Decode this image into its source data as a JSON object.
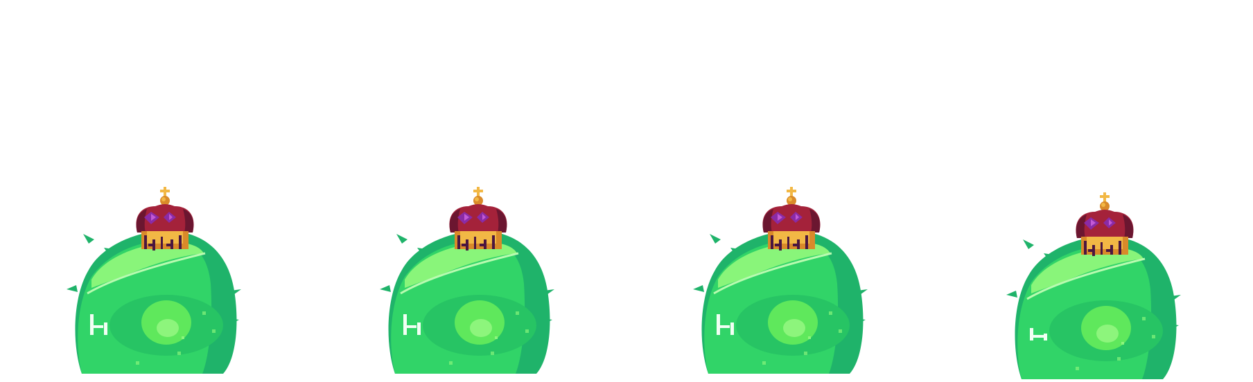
{
  "sprite_sheet": {
    "character": "king-slime",
    "frame_count": 4,
    "palette": {
      "background": "#ffffff",
      "slime_dark": "#1fb36a",
      "slime_body": "#31d468",
      "slime_highlight": "#89f57a",
      "slime_face": "#27c464",
      "eye_core": "#5fe85c",
      "eye_glow": "#8df57c",
      "crown_red": "#a4223a",
      "crown_shadow": "#6b1630",
      "crown_gold": "#f2b845",
      "crown_gold_dark": "#d98a2a",
      "gem_purple": "#8a2ba6",
      "gem_light": "#c35ad6",
      "teeth": "#f2fff4"
    },
    "frames": [
      {
        "name": "frame-1",
        "squash": 0
      },
      {
        "name": "frame-2",
        "squash": 0
      },
      {
        "name": "frame-3",
        "squash": 0
      },
      {
        "name": "frame-4",
        "squash": 1
      }
    ]
  }
}
